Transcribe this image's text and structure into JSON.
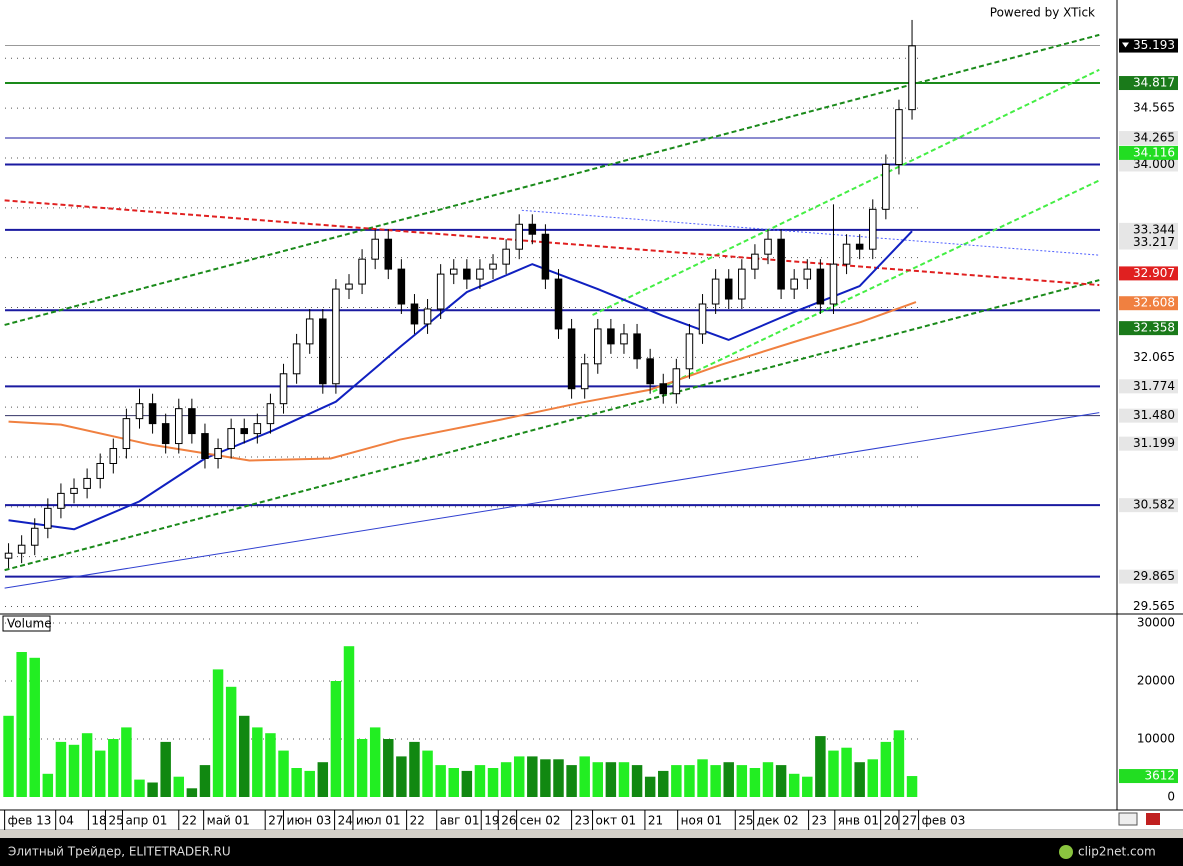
{
  "chart_data": [
    {
      "type": "candlestick",
      "annotation": "Powered by XTick",
      "xlim": [
        -0.5,
        84.5
      ],
      "ylim": [
        29.5,
        35.65
      ],
      "yticks": [
        29.565,
        32.065,
        34.565
      ],
      "minor_yticks": [
        30.065,
        30.565,
        31.065,
        31.565,
        32.565,
        33.065,
        33.565,
        34.065,
        35.065
      ],
      "grid": true,
      "xticks": [
        {
          "value": -0.3,
          "label": "фев 13"
        },
        {
          "value": 3.6,
          "label": "04"
        },
        {
          "value": 6.1,
          "label": "18"
        },
        {
          "value": 7.4,
          "label": "25"
        },
        {
          "value": 8.7,
          "label": "апр 01"
        },
        {
          "value": 13.0,
          "label": "22"
        },
        {
          "value": 14.9,
          "label": "май 01"
        },
        {
          "value": 19.6,
          "label": "27"
        },
        {
          "value": 21.0,
          "label": "июн 03"
        },
        {
          "value": 24.9,
          "label": "24"
        },
        {
          "value": 26.3,
          "label": "июл 01"
        },
        {
          "value": 30.4,
          "label": "22"
        },
        {
          "value": 32.7,
          "label": "авг 01"
        },
        {
          "value": 36.1,
          "label": "19"
        },
        {
          "value": 37.4,
          "label": "26"
        },
        {
          "value": 38.8,
          "label": "сен 02"
        },
        {
          "value": 43.0,
          "label": "23"
        },
        {
          "value": 44.6,
          "label": "окт 01"
        },
        {
          "value": 48.6,
          "label": "21"
        },
        {
          "value": 51.1,
          "label": "ноя 01"
        },
        {
          "value": 55.5,
          "label": "25"
        },
        {
          "value": 56.9,
          "label": "дек 02"
        },
        {
          "value": 61.1,
          "label": "23"
        },
        {
          "value": 63.1,
          "label": "янв 01"
        },
        {
          "value": 66.6,
          "label": "20"
        },
        {
          "value": 68.0,
          "label": "27"
        },
        {
          "value": 69.5,
          "label": "фев 03"
        }
      ],
      "candle_up": "#ffffff",
      "candle_down": "#000000",
      "open": [
        30.05,
        30.1,
        30.18,
        30.35,
        30.55,
        30.7,
        30.75,
        30.85,
        31.0,
        31.15,
        31.45,
        31.6,
        31.4,
        31.2,
        31.55,
        31.3,
        31.05,
        31.15,
        31.35,
        31.3,
        31.4,
        31.6,
        31.9,
        32.2,
        32.45,
        31.8,
        32.75,
        32.8,
        33.05,
        33.25,
        32.95,
        32.6,
        32.4,
        32.55,
        32.9,
        32.95,
        32.85,
        32.95,
        33.0,
        33.15,
        33.4,
        33.3,
        32.85,
        32.35,
        31.75,
        32.0,
        32.35,
        32.2,
        32.3,
        32.05,
        31.8,
        31.7,
        31.95,
        32.3,
        32.6,
        32.85,
        32.65,
        32.95,
        33.1,
        33.25,
        32.75,
        32.85,
        32.95,
        32.6,
        33.0,
        33.2,
        33.15,
        33.55,
        34.0,
        34.55
      ],
      "high": [
        30.2,
        30.28,
        30.45,
        30.65,
        30.8,
        30.85,
        30.95,
        31.1,
        31.25,
        31.55,
        31.75,
        31.7,
        31.5,
        31.65,
        31.65,
        31.4,
        31.25,
        31.45,
        31.45,
        31.5,
        31.7,
        32.0,
        32.3,
        32.55,
        32.55,
        32.85,
        32.9,
        33.15,
        33.35,
        33.35,
        33.05,
        32.7,
        32.65,
        33.0,
        33.05,
        33.05,
        33.05,
        33.1,
        33.25,
        33.5,
        33.5,
        33.4,
        32.95,
        32.45,
        32.1,
        32.45,
        32.45,
        32.4,
        32.4,
        32.15,
        31.9,
        32.05,
        32.4,
        32.7,
        32.95,
        32.95,
        33.05,
        33.2,
        33.35,
        33.35,
        32.95,
        33.05,
        33.05,
        33.6,
        33.3,
        33.3,
        33.65,
        34.1,
        34.65,
        35.45
      ],
      "low": [
        29.95,
        30.0,
        30.08,
        30.25,
        30.45,
        30.6,
        30.65,
        30.75,
        30.9,
        31.05,
        31.35,
        31.3,
        31.1,
        31.1,
        31.2,
        30.95,
        30.95,
        31.05,
        31.2,
        31.2,
        31.3,
        31.5,
        31.8,
        32.1,
        31.7,
        31.7,
        32.65,
        32.7,
        32.95,
        32.85,
        32.5,
        32.3,
        32.3,
        32.45,
        32.8,
        32.75,
        32.75,
        32.85,
        32.9,
        33.05,
        33.2,
        32.75,
        32.25,
        31.65,
        31.65,
        31.9,
        32.1,
        32.1,
        31.95,
        31.7,
        31.6,
        31.6,
        31.85,
        32.2,
        32.5,
        32.55,
        32.55,
        32.85,
        33.0,
        32.65,
        32.65,
        32.75,
        32.5,
        32.5,
        32.9,
        33.05,
        33.05,
        33.45,
        33.9,
        34.45
      ],
      "close": [
        30.1,
        30.18,
        30.35,
        30.55,
        30.7,
        30.75,
        30.85,
        31.0,
        31.15,
        31.45,
        31.6,
        31.4,
        31.2,
        31.55,
        31.3,
        31.05,
        31.15,
        31.35,
        31.3,
        31.4,
        31.6,
        31.9,
        32.2,
        32.45,
        31.8,
        32.75,
        32.8,
        33.05,
        33.25,
        32.95,
        32.6,
        32.4,
        32.55,
        32.9,
        32.95,
        32.85,
        32.95,
        33.0,
        33.15,
        33.4,
        33.3,
        32.85,
        32.35,
        31.75,
        32.0,
        32.35,
        32.2,
        32.3,
        32.05,
        31.8,
        31.7,
        31.95,
        32.3,
        32.6,
        32.85,
        32.65,
        32.95,
        33.1,
        33.25,
        32.75,
        32.85,
        32.95,
        32.6,
        33.0,
        33.2,
        33.15,
        33.55,
        34.0,
        34.55,
        35.19
      ],
      "series": [
        {
          "color": "#1020c0",
          "x": [
            0,
            5,
            10,
            15,
            20,
            25,
            30,
            35,
            40,
            45,
            50,
            55,
            60,
            65,
            69
          ],
          "values": [
            30.43,
            30.34,
            30.62,
            31.05,
            31.32,
            31.62,
            32.18,
            32.72,
            33.0,
            32.75,
            32.48,
            32.24,
            32.52,
            32.78,
            33.33
          ]
        },
        {
          "color": "#f08040",
          "x": [
            0,
            4,
            10.8,
            18.4,
            24.6,
            29.9,
            37.6,
            43.7,
            49,
            54.4,
            60.5,
            65.1,
            69.3
          ],
          "values": [
            31.42,
            31.39,
            31.19,
            31.03,
            31.05,
            31.24,
            31.44,
            31.61,
            31.74,
            31.99,
            32.24,
            32.42,
            32.62
          ]
        }
      ],
      "trend_lines": [
        {
          "color": "#1a8a1a",
          "dash": true,
          "x": [
            -0.3,
            83.3
          ],
          "values": [
            32.39,
            35.3
          ]
        },
        {
          "color": "#1a8a1a",
          "dash": true,
          "x": [
            -0.3,
            83.3
          ],
          "values": [
            29.93,
            32.84
          ]
        },
        {
          "color": "#44ee44",
          "dash": true,
          "x": [
            44.6,
            83.3
          ],
          "values": [
            32.49,
            34.95
          ]
        },
        {
          "color": "#44ee44",
          "dash": true,
          "x": [
            49.2,
            83.3
          ],
          "values": [
            31.72,
            33.84
          ]
        },
        {
          "color": "#e02020",
          "dash": true,
          "x": [
            -0.3,
            83.3
          ],
          "values": [
            33.64,
            32.79
          ]
        },
        {
          "color": "#5060ff",
          "dash": false,
          "x": [
            39.2,
            83.3
          ],
          "values": [
            33.54,
            33.09
          ]
        },
        {
          "color": "#3040d0",
          "dash": false,
          "x": [
            -0.3,
            83.3
          ],
          "values": [
            29.75,
            31.51
          ]
        }
      ],
      "levels": [
        {
          "value": 35.193,
          "color": "#999999",
          "width": 1,
          "label_bg": "#000000",
          "label_fg": "#ffffff"
        },
        {
          "value": 34.817,
          "color": "#1a8a1a",
          "width": 2,
          "label_bg": "#1a7a1a",
          "label_fg": "#ffffff"
        },
        {
          "value": 34.265,
          "color": "#1a1aa0",
          "width": 1,
          "label_bg": "#e6e6e6",
          "label_fg": "#000000"
        },
        {
          "value": 34.0,
          "color": "#1a1aa0",
          "width": 2,
          "label_bg": "#e6e6e6",
          "label_fg": "#000000"
        },
        {
          "value": 33.344,
          "color": "#1a1aa0",
          "width": 2,
          "label_bg": "#e6e6e6",
          "label_fg": "#000000"
        },
        {
          "value": 32.538,
          "color": "#1a1aa0",
          "width": 2
        },
        {
          "value": 31.774,
          "color": "#1a1aa0",
          "width": 2,
          "label_bg": "#e6e6e6",
          "label_fg": "#000000"
        },
        {
          "value": 31.48,
          "color": "#333366",
          "width": 1,
          "label_bg": "#e6e6e6",
          "label_fg": "#000000"
        },
        {
          "value": 30.582,
          "color": "#1a1aa0",
          "width": 2,
          "label_bg": "#e6e6e6",
          "label_fg": "#000000"
        },
        {
          "value": 29.865,
          "color": "#1a1aa0",
          "width": 2,
          "label_bg": "#e6e6e6",
          "label_fg": "#000000"
        }
      ],
      "level_labels": [
        {
          "value": 34.817,
          "label": "34.817"
        },
        {
          "value": 34.0,
          "label": "34.000"
        },
        {
          "value": 31.48,
          "label": "31.480"
        }
      ],
      "markers": [
        {
          "value": 34.116,
          "bg": "#22dd22",
          "fg": "#ffffff"
        },
        {
          "value": 33.217,
          "bg": "#e6e6e6",
          "fg": "#000000"
        },
        {
          "value": 32.907,
          "bg": "#e02020",
          "fg": "#ffffff"
        },
        {
          "value": 32.608,
          "bg": "#f08040",
          "fg": "#ffffff"
        },
        {
          "value": 32.358,
          "bg": "#1a7a1a",
          "fg": "#ffffff"
        },
        {
          "value": 31.199,
          "bg": "#e6e6e6",
          "fg": "#000000"
        }
      ]
    },
    {
      "type": "bar",
      "label": "Volume",
      "xlim": [
        -0.5,
        84.5
      ],
      "ylim": [
        0,
        30000
      ],
      "yticks": [
        0,
        10000,
        20000,
        30000
      ],
      "grid": true,
      "up_color": "#22ee22",
      "down_color": "#118811",
      "last_bg": "#22dd22",
      "values": [
        14000,
        25000,
        24000,
        4000,
        9500,
        9000,
        11000,
        8000,
        10000,
        12000,
        3000,
        2500,
        9500,
        3500,
        1500,
        5500,
        22000,
        19000,
        14000,
        12000,
        11000,
        8000,
        5000,
        4500,
        6000,
        20000,
        26000,
        10000,
        12000,
        10000,
        7000,
        9500,
        8000,
        5500,
        5000,
        4500,
        5500,
        5000,
        6000,
        7000,
        7000,
        6500,
        6500,
        5500,
        7000,
        6000,
        6000,
        6000,
        5500,
        3500,
        4500,
        5500,
        5500,
        6500,
        5500,
        6000,
        5500,
        5000,
        6000,
        5500,
        4000,
        3500,
        10500,
        8000,
        8500,
        6000,
        6500,
        9500,
        11500,
        3612
      ]
    }
  ],
  "footer": {
    "left": "Элитный Трейдер, ELITETRADER.RU",
    "right": "clip2net.com"
  }
}
